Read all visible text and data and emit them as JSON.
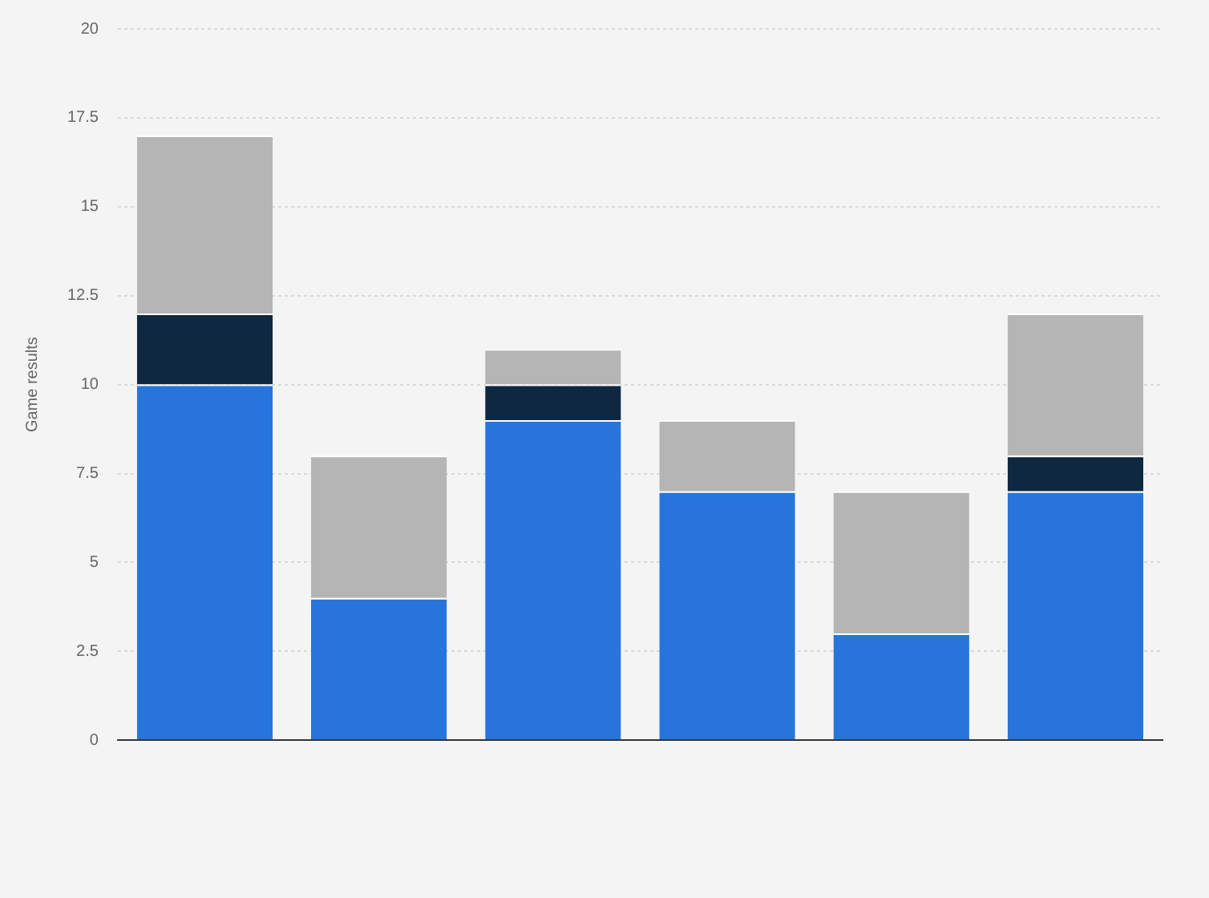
{
  "chart_data": {
    "type": "bar",
    "stacked": true,
    "ylabel": "Game results",
    "categories": [
      null,
      null,
      null,
      null,
      null,
      null
    ],
    "series": [
      {
        "color": "#2775dc",
        "values": [
          10,
          4,
          9,
          7,
          3,
          7
        ]
      },
      {
        "color": "#0e2841",
        "values": [
          2,
          0,
          1,
          0,
          0,
          1
        ]
      },
      {
        "color": "#b5b5b5",
        "values": [
          5,
          4,
          1,
          2,
          4,
          4
        ]
      }
    ],
    "ylim": [
      0,
      20
    ],
    "yticks": [
      0,
      2.5,
      5,
      7.5,
      10,
      12.5,
      15,
      17.5,
      20
    ],
    "grid": "y",
    "legend": false
  }
}
